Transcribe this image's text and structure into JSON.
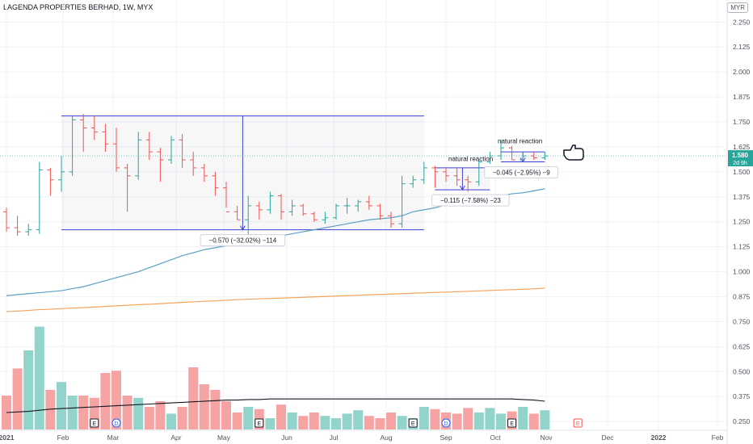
{
  "header": {
    "title": "LAGENDA PROPERTIES BERHAD, 1W, MYX",
    "currency": "MYR"
  },
  "price_tag": {
    "value": "1.580",
    "countdown": "2d 9h"
  },
  "colors": {
    "up": "#26a69a",
    "down": "#ef5350",
    "ma_short": "#5b9fc5",
    "ma_long": "#f7a35c",
    "vol_ma": "#131722",
    "box": "#3f3fd6",
    "vol_up": "#92d4cb",
    "vol_down": "#f5a3a3"
  },
  "annotations": [
    {
      "text": "natural reaction"
    },
    {
      "text": "natural reaction"
    }
  ],
  "measure_labels": [
    {
      "text": "−0.570 (−32.02%) −114"
    },
    {
      "text": "−0.115 (−7.58%) −23"
    },
    {
      "text": "−0.045 (−2.95%) −9"
    }
  ],
  "event_markers": [
    "E",
    "D",
    "E",
    "E",
    "D",
    "E",
    "E"
  ],
  "chart_data": {
    "type": "bar",
    "interval": "1W",
    "y_axis": {
      "range": [
        0.21,
        2.32
      ],
      "ticks": [
        "0.250",
        "0.375",
        "0.500",
        "0.625",
        "0.750",
        "0.875",
        "1.000",
        "1.125",
        "1.250",
        "1.375",
        "1.500",
        "1.625",
        "1.750",
        "1.875",
        "2.000",
        "2.125",
        "2.250"
      ]
    },
    "x_axis": {
      "labels": [
        "2021",
        "Feb",
        "Mar",
        "Apr",
        "May",
        "Jun",
        "Jul",
        "Aug",
        "Sep",
        "Oct",
        "Nov",
        "Dec",
        "2022",
        "Feb"
      ]
    },
    "ohlc": [
      [
        1.3,
        1.32,
        1.2,
        1.22
      ],
      [
        1.22,
        1.28,
        1.18,
        1.2
      ],
      [
        1.2,
        1.24,
        1.18,
        1.21
      ],
      [
        1.21,
        1.55,
        1.19,
        1.51
      ],
      [
        1.51,
        1.52,
        1.38,
        1.46
      ],
      [
        1.46,
        1.58,
        1.4,
        1.5
      ],
      [
        1.5,
        1.78,
        1.48,
        1.76
      ],
      [
        1.76,
        1.79,
        1.6,
        1.72
      ],
      [
        1.72,
        1.78,
        1.66,
        1.7
      ],
      [
        1.7,
        1.74,
        1.6,
        1.64
      ],
      [
        1.64,
        1.72,
        1.5,
        1.52
      ],
      [
        1.52,
        1.54,
        1.3,
        1.48
      ],
      [
        1.48,
        1.7,
        1.46,
        1.66
      ],
      [
        1.66,
        1.7,
        1.56,
        1.6
      ],
      [
        1.6,
        1.62,
        1.45,
        1.56
      ],
      [
        1.56,
        1.68,
        1.54,
        1.66
      ],
      [
        1.66,
        1.69,
        1.52,
        1.56
      ],
      [
        1.56,
        1.6,
        1.48,
        1.52
      ],
      [
        1.52,
        1.54,
        1.45,
        1.48
      ],
      [
        1.48,
        1.5,
        1.38,
        1.42
      ],
      [
        1.42,
        1.45,
        1.32,
        1.3
      ],
      [
        1.3,
        1.33,
        1.26,
        1.26
      ],
      [
        1.26,
        1.38,
        1.15,
        1.33
      ],
      [
        1.33,
        1.35,
        1.26,
        1.31
      ],
      [
        1.31,
        1.4,
        1.29,
        1.38
      ],
      [
        1.38,
        1.39,
        1.26,
        1.3
      ],
      [
        1.3,
        1.36,
        1.28,
        1.33
      ],
      [
        1.33,
        1.34,
        1.28,
        1.29
      ],
      [
        1.29,
        1.3,
        1.25,
        1.26
      ],
      [
        1.26,
        1.3,
        1.24,
        1.27
      ],
      [
        1.27,
        1.34,
        1.26,
        1.33
      ],
      [
        1.33,
        1.37,
        1.29,
        1.33
      ],
      [
        1.33,
        1.36,
        1.3,
        1.35
      ],
      [
        1.35,
        1.38,
        1.31,
        1.33
      ],
      [
        1.33,
        1.34,
        1.26,
        1.28
      ],
      [
        1.28,
        1.3,
        1.22,
        1.24
      ],
      [
        1.24,
        1.48,
        1.22,
        1.44
      ],
      [
        1.44,
        1.48,
        1.42,
        1.46
      ],
      [
        1.46,
        1.55,
        1.44,
        1.52
      ],
      [
        1.52,
        1.53,
        1.42,
        1.5
      ],
      [
        1.5,
        1.52,
        1.45,
        1.48
      ],
      [
        1.48,
        1.52,
        1.43,
        1.46
      ],
      [
        1.46,
        1.48,
        1.4,
        1.45
      ],
      [
        1.45,
        1.56,
        1.43,
        1.55
      ],
      [
        1.55,
        1.6,
        1.54,
        1.58
      ],
      [
        1.58,
        1.66,
        1.56,
        1.62
      ],
      [
        1.62,
        1.63,
        1.56,
        1.56
      ],
      [
        1.56,
        1.6,
        1.55,
        1.58
      ],
      [
        1.58,
        1.6,
        1.56,
        1.57
      ],
      [
        1.57,
        1.6,
        1.56,
        1.58
      ]
    ],
    "volume_scale_max": 100,
    "volume": [
      30,
      54,
      70,
      91,
      35,
      42,
      30,
      30,
      28,
      50,
      52,
      30,
      28,
      20,
      25,
      14,
      20,
      55,
      40,
      35,
      25,
      15,
      20,
      18,
      10,
      22,
      15,
      12,
      15,
      12,
      10,
      14,
      17,
      12,
      10,
      15,
      12,
      10,
      20,
      18,
      15,
      14,
      19,
      15,
      19,
      14,
      16,
      20,
      14,
      17
    ],
    "sma_short": [
      0.88,
      0.885,
      0.89,
      0.895,
      0.9,
      0.905,
      0.915,
      0.925,
      0.94,
      0.955,
      0.97,
      0.985,
      1.0,
      1.02,
      1.04,
      1.06,
      1.08,
      1.095,
      1.11,
      1.12,
      1.13,
      1.14,
      1.15,
      1.16,
      1.17,
      1.18,
      1.19,
      1.2,
      1.21,
      1.22,
      1.23,
      1.24,
      1.25,
      1.26,
      1.265,
      1.27,
      1.28,
      1.3,
      1.31,
      1.32,
      1.335,
      1.345,
      1.355,
      1.36,
      1.37,
      1.38,
      1.39,
      1.395,
      1.405,
      1.415
    ],
    "sma_long": [
      0.8,
      0.803,
      0.806,
      0.81,
      0.812,
      0.815,
      0.818,
      0.82,
      0.823,
      0.826,
      0.829,
      0.832,
      0.835,
      0.837,
      0.84,
      0.843,
      0.846,
      0.849,
      0.852,
      0.854,
      0.857,
      0.86,
      0.862,
      0.864,
      0.866,
      0.868,
      0.87,
      0.872,
      0.874,
      0.876,
      0.878,
      0.88,
      0.882,
      0.884,
      0.886,
      0.888,
      0.89,
      0.892,
      0.894,
      0.896,
      0.898,
      0.9,
      0.902,
      0.904,
      0.906,
      0.908,
      0.91,
      0.912,
      0.914,
      0.918
    ],
    "volume_ma": [
      15,
      15.5,
      16,
      17,
      18,
      18.5,
      19,
      19.5,
      20,
      20.5,
      21,
      21.5,
      22,
      22.5,
      23,
      23.5,
      24,
      24.5,
      25,
      25.5,
      26,
      26,
      26.5,
      26.5,
      27,
      27,
      27,
      27,
      27,
      27,
      27,
      27,
      27,
      27,
      27,
      27,
      27,
      27,
      27,
      27,
      27,
      27,
      27,
      27,
      27,
      27,
      27,
      26.5,
      26,
      25
    ],
    "current_price": 1.58
  }
}
